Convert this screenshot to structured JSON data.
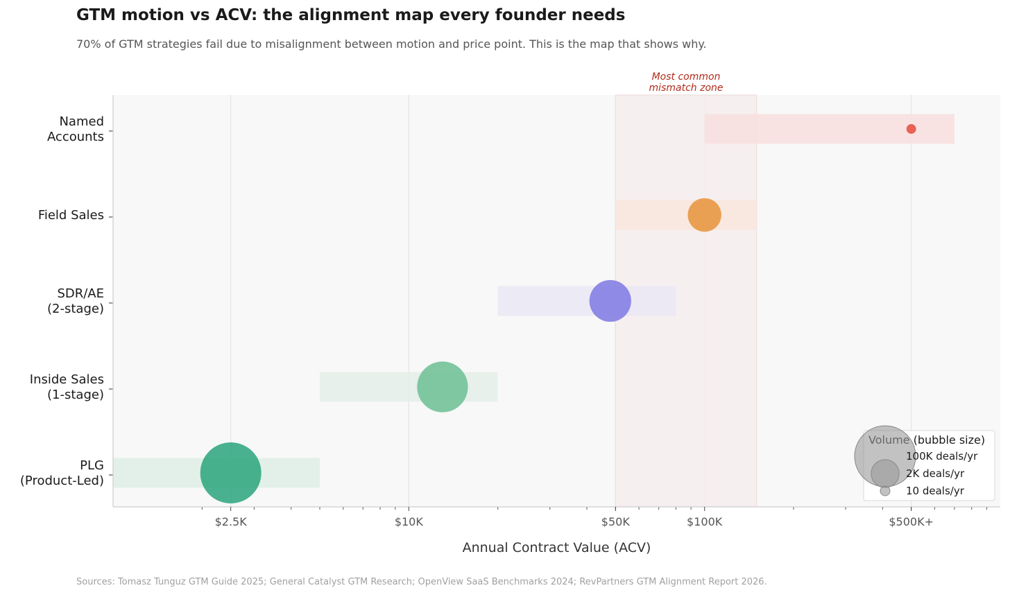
{
  "title": "GTM motion vs ACV: the alignment map every founder needs",
  "subtitle": "70% of GTM strategies fail due to misalignment between motion and price point. This is the map that shows why.",
  "source": "Sources: Tomasz Tunguz GTM Guide 2025; General Catalyst GTM Research; OpenView SaaS Benchmarks 2024; RevPartners GTM Alignment Report 2026.",
  "chart_data": {
    "type": "scatter",
    "xscale": "log",
    "xlabel": "Annual Contract Value (ACV)",
    "xlim": [
      1000,
      1000000
    ],
    "x_ticks": [
      {
        "value": 2500,
        "label": "$2.5K"
      },
      {
        "value": 10000,
        "label": "$10K"
      },
      {
        "value": 50000,
        "label": "$50K"
      },
      {
        "value": 100000,
        "label": "$100K"
      },
      {
        "value": 500000,
        "label": "$500K+"
      }
    ],
    "grid": true,
    "motions": [
      {
        "label_lines": [
          "PLG",
          "(Product-Led)"
        ],
        "range": [
          1000,
          5000
        ],
        "acv": 2500,
        "size": 100000,
        "color": "#2aa57c",
        "band": "#dfeee8"
      },
      {
        "label_lines": [
          "Inside Sales",
          "(1-stage)"
        ],
        "range": [
          5000,
          20000
        ],
        "acv": 13000,
        "size": 40000,
        "color": "#6cc093",
        "band": "#e4efe9"
      },
      {
        "label_lines": [
          "SDR/AE",
          "(2-stage)"
        ],
        "range": [
          20000,
          80000
        ],
        "acv": 48000,
        "size": 15000,
        "color": "#7e79e3",
        "band": "#eae8f5"
      },
      {
        "label_lines": [
          "Field Sales"
        ],
        "range": [
          50000,
          150000
        ],
        "acv": 100000,
        "size": 5000,
        "color": "#e8933a",
        "band": "#f8e6dc"
      },
      {
        "label_lines": [
          "Named",
          "Accounts"
        ],
        "range": [
          100000,
          700000
        ],
        "acv": 500000,
        "size": 10,
        "color": "#e54b3c",
        "band": "#f8dfde"
      }
    ],
    "mismatch_zone": {
      "range": [
        50000,
        150000
      ],
      "label_lines": [
        "Most common",
        "mismatch zone"
      ],
      "color": "#f5eded"
    },
    "legend": {
      "title": "Volume (bubble size)",
      "entries": [
        {
          "label": "100K deals/yr",
          "size": 100000
        },
        {
          "label": "2K deals/yr",
          "size": 2000
        },
        {
          "label": "10 deals/yr",
          "size": 10
        }
      ],
      "position": "bottom-right"
    }
  }
}
